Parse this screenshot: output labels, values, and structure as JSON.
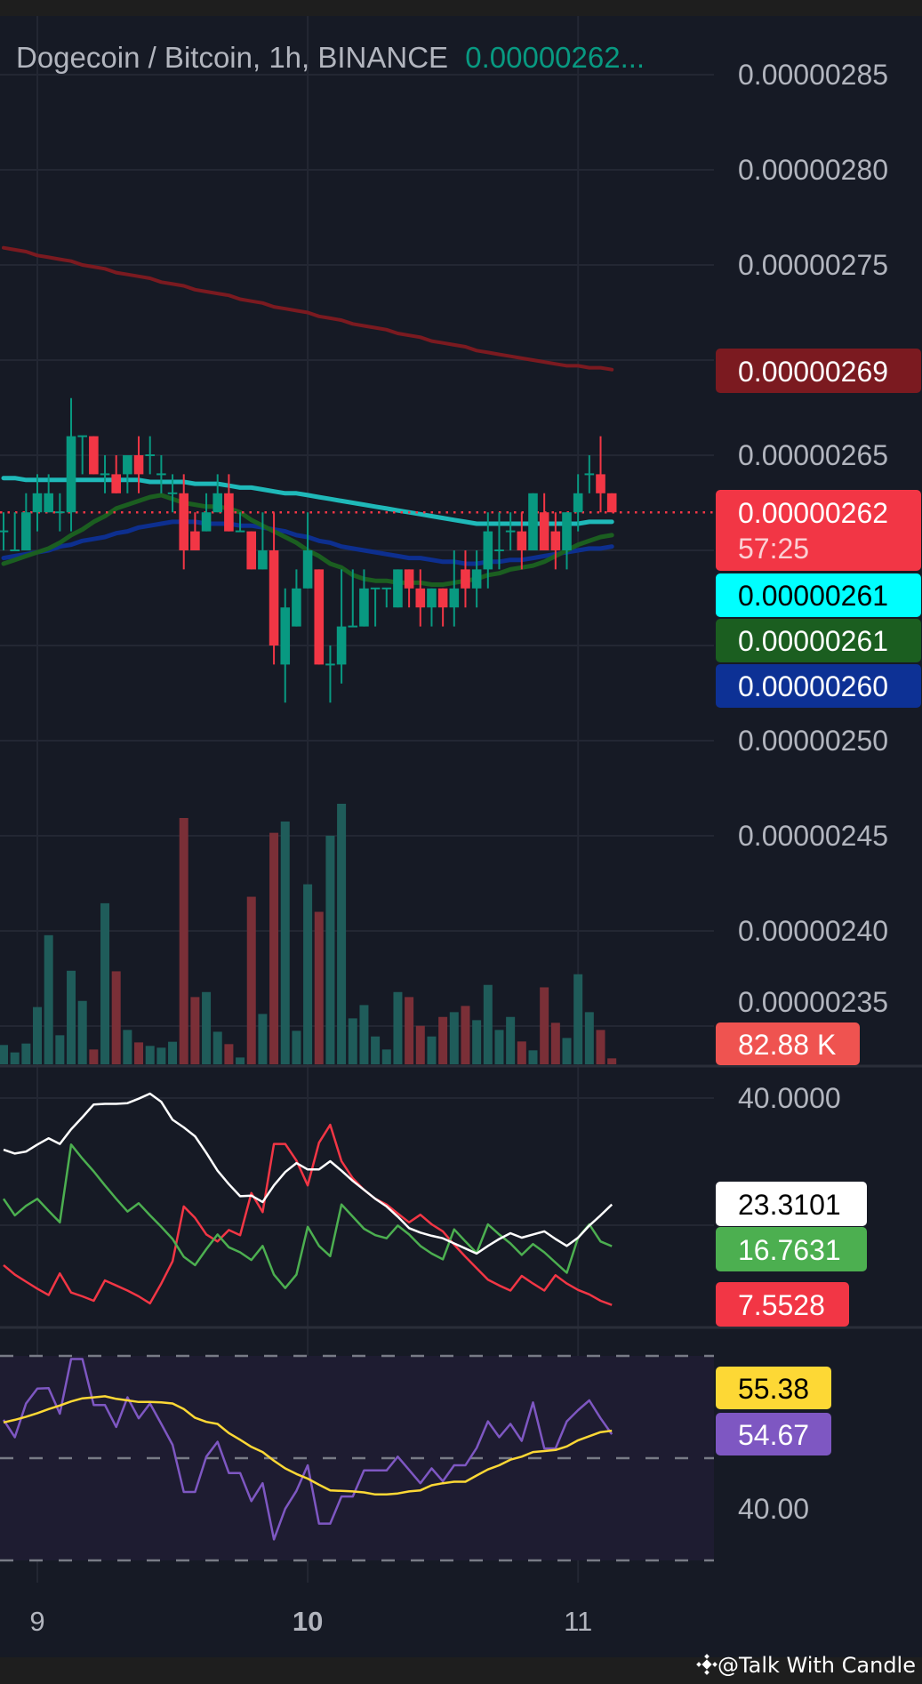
{
  "legend": {
    "symbol": "Dogecoin / Bitcoin, 1h, BINANCE",
    "last_value": "0.00000262..."
  },
  "colors": {
    "background": "#161a25",
    "grid": "#232733",
    "axis_text": "#b2b5be",
    "up": "#089981",
    "down": "#f23645",
    "volume_up": "#1f5c5a",
    "volume_down": "#7a2f37",
    "ma_red": "#7b1a20",
    "ma_cyan": "#1fb9b9",
    "ma_green": "#1b5e20",
    "ma_blue": "#0d2f8f",
    "adx": "#ffffff",
    "plus_di": "#4caf50",
    "minus_di": "#f23645",
    "rsi": "#7e57c2",
    "rsi_ma": "#fdd835",
    "rsi_band": "#1e1c31"
  },
  "price_axis": {
    "ticks": [
      "0.00000285",
      "0.00000280",
      "0.00000275",
      "0.00000270",
      "0.00000265",
      "0.00000260",
      "0.00000255",
      "0.00000250",
      "0.00000245",
      "0.00000240",
      "0.00000235"
    ],
    "tick_values": [
      2.85e-06,
      2.8e-06,
      2.75e-06,
      2.7e-06,
      2.65e-06,
      2.6e-06,
      2.55e-06,
      2.5e-06,
      2.45e-06,
      2.4e-06,
      2.35e-06
    ],
    "visible_tick_labels": [
      "0.00000285",
      "0.00000280",
      "0.00000275",
      "",
      "0.00000265",
      "",
      "",
      "0.00000250",
      "0.00000245",
      "0.00000240",
      "0.00000235"
    ]
  },
  "price_labels": {
    "ma_red": {
      "text": "0.00000269",
      "bg": "#7b1a20",
      "fg": "#ffffff"
    },
    "last": {
      "text": "0.00000262",
      "countdown": "57:25",
      "bg": "#f23645",
      "fg": "#ffffff"
    },
    "ma_cyan": {
      "text": "0.00000261",
      "bg": "#00ffff",
      "fg": "#000000"
    },
    "ma_green": {
      "text": "0.00000261",
      "bg": "#1b5e20",
      "fg": "#ffffff"
    },
    "ma_blue": {
      "text": "0.00000260",
      "bg": "#0d3195",
      "fg": "#ffffff"
    },
    "volume": {
      "text": "82.88 K",
      "bg": "#ef5350",
      "fg": "#ffffff"
    }
  },
  "last_price": 2.62e-06,
  "time_axis": {
    "labels": [
      {
        "text": "9",
        "bold": false,
        "candle": 3
      },
      {
        "text": "10",
        "bold": true,
        "candle": 27
      },
      {
        "text": "11",
        "bold": false,
        "candle": 51
      }
    ]
  },
  "candles": [
    [
      2.61e-06,
      2.62e-06,
      2.6e-06,
      2.61e-06
    ],
    [
      2.6e-06,
      2.62e-06,
      2.6e-06,
      2.6e-06
    ],
    [
      2.6e-06,
      2.63e-06,
      2.6e-06,
      2.62e-06
    ],
    [
      2.62e-06,
      2.64e-06,
      2.61e-06,
      2.63e-06
    ],
    [
      2.62e-06,
      2.64e-06,
      2.62e-06,
      2.63e-06
    ],
    [
      2.62e-06,
      2.63e-06,
      2.61e-06,
      2.62e-06
    ],
    [
      2.62e-06,
      2.68e-06,
      2.61e-06,
      2.66e-06
    ],
    [
      2.66e-06,
      2.66e-06,
      2.64e-06,
      2.66e-06
    ],
    [
      2.66e-06,
      2.66e-06,
      2.64e-06,
      2.64e-06
    ],
    [
      2.64e-06,
      2.65e-06,
      2.63e-06,
      2.64e-06
    ],
    [
      2.64e-06,
      2.65e-06,
      2.63e-06,
      2.63e-06
    ],
    [
      2.64e-06,
      2.65e-06,
      2.63e-06,
      2.65e-06
    ],
    [
      2.65e-06,
      2.66e-06,
      2.63e-06,
      2.64e-06
    ],
    [
      2.65e-06,
      2.66e-06,
      2.64e-06,
      2.65e-06
    ],
    [
      2.64e-06,
      2.65e-06,
      2.63e-06,
      2.64e-06
    ],
    [
      2.63e-06,
      2.64e-06,
      2.62e-06,
      2.63e-06
    ],
    [
      2.63e-06,
      2.64e-06,
      2.59e-06,
      2.6e-06
    ],
    [
      2.61e-06,
      2.62e-06,
      2.6e-06,
      2.6e-06
    ],
    [
      2.61e-06,
      2.63e-06,
      2.61e-06,
      2.62e-06
    ],
    [
      2.62e-06,
      2.64e-06,
      2.62e-06,
      2.63e-06
    ],
    [
      2.63e-06,
      2.64e-06,
      2.61e-06,
      2.61e-06
    ],
    [
      2.61e-06,
      2.62e-06,
      2.61e-06,
      2.61e-06
    ],
    [
      2.61e-06,
      2.61e-06,
      2.59e-06,
      2.59e-06
    ],
    [
      2.59e-06,
      2.62e-06,
      2.59e-06,
      2.6e-06
    ],
    [
      2.6e-06,
      2.62e-06,
      2.54e-06,
      2.55e-06
    ],
    [
      2.54e-06,
      2.58e-06,
      2.52e-06,
      2.57e-06
    ],
    [
      2.56e-06,
      2.59e-06,
      2.56e-06,
      2.58e-06
    ],
    [
      2.58e-06,
      2.62e-06,
      2.58e-06,
      2.6e-06
    ],
    [
      2.59e-06,
      2.59e-06,
      2.54e-06,
      2.54e-06
    ],
    [
      2.54e-06,
      2.55e-06,
      2.52e-06,
      2.54e-06
    ],
    [
      2.54e-06,
      2.59e-06,
      2.53e-06,
      2.56e-06
    ],
    [
      2.56e-06,
      2.59e-06,
      2.56e-06,
      2.56e-06
    ],
    [
      2.56e-06,
      2.59e-06,
      2.56e-06,
      2.58e-06
    ],
    [
      2.58e-06,
      2.58e-06,
      2.56e-06,
      2.58e-06
    ],
    [
      2.58e-06,
      2.58e-06,
      2.57e-06,
      2.58e-06
    ],
    [
      2.57e-06,
      2.59e-06,
      2.57e-06,
      2.59e-06
    ],
    [
      2.59e-06,
      2.59e-06,
      2.57e-06,
      2.58e-06
    ],
    [
      2.58e-06,
      2.59e-06,
      2.56e-06,
      2.57e-06
    ],
    [
      2.57e-06,
      2.58e-06,
      2.56e-06,
      2.58e-06
    ],
    [
      2.58e-06,
      2.58e-06,
      2.56e-06,
      2.57e-06
    ],
    [
      2.57e-06,
      2.6e-06,
      2.56e-06,
      2.58e-06
    ],
    [
      2.59e-06,
      2.6e-06,
      2.57e-06,
      2.58e-06
    ],
    [
      2.58e-06,
      2.6e-06,
      2.57e-06,
      2.59e-06
    ],
    [
      2.59e-06,
      2.62e-06,
      2.58e-06,
      2.61e-06
    ],
    [
      2.6e-06,
      2.62e-06,
      2.59e-06,
      2.6e-06
    ],
    [
      2.61e-06,
      2.62e-06,
      2.6e-06,
      2.61e-06
    ],
    [
      2.61e-06,
      2.62e-06,
      2.59e-06,
      2.6e-06
    ],
    [
      2.6e-06,
      2.63e-06,
      2.6e-06,
      2.63e-06
    ],
    [
      2.62e-06,
      2.63e-06,
      2.6e-06,
      2.6e-06
    ],
    [
      2.61e-06,
      2.62e-06,
      2.59e-06,
      2.6e-06
    ],
    [
      2.6e-06,
      2.62e-06,
      2.59e-06,
      2.62e-06
    ],
    [
      2.62e-06,
      2.64e-06,
      2.61e-06,
      2.63e-06
    ],
    [
      2.64e-06,
      2.65e-06,
      2.63e-06,
      2.64e-06
    ],
    [
      2.64e-06,
      2.66e-06,
      2.62e-06,
      2.63e-06
    ],
    [
      2.63e-06,
      2.63e-06,
      2.62e-06,
      2.62e-06
    ]
  ],
  "volume": [
    270000,
    166000,
    290000,
    800000,
    1805000,
    406000,
    1308000,
    886000,
    207000,
    2252000,
    1300000,
    480000,
    306000,
    257000,
    232000,
    315000,
    3444000,
    940000,
    1010000,
    455000,
    282000,
    95000,
    2343000,
    704000,
    3237000,
    3395000,
    468000,
    2517000,
    2132000,
    3196000,
    3643000,
    642000,
    828000,
    389000,
    207000,
    1010000,
    940000,
    538000,
    389000,
    662000,
    729000,
    816000,
    617000,
    1110000,
    480000,
    662000,
    319000,
    195000,
    1076000,
    580000,
    368000,
    1259000,
    729000,
    480000,
    82880
  ],
  "moving_averages": {
    "red": [
      2.759e-06,
      2.758e-06,
      2.757e-06,
      2.755e-06,
      2.754e-06,
      2.753e-06,
      2.752e-06,
      2.75e-06,
      2.749e-06,
      2.748e-06,
      2.746e-06,
      2.745e-06,
      2.744e-06,
      2.743e-06,
      2.741e-06,
      2.74e-06,
      2.739e-06,
      2.737e-06,
      2.736e-06,
      2.735e-06,
      2.734e-06,
      2.732e-06,
      2.731e-06,
      2.73e-06,
      2.728e-06,
      2.727e-06,
      2.726e-06,
      2.725e-06,
      2.723e-06,
      2.722e-06,
      2.721e-06,
      2.719e-06,
      2.718e-06,
      2.717e-06,
      2.716e-06,
      2.714e-06,
      2.713e-06,
      2.712e-06,
      2.71e-06,
      2.709e-06,
      2.708e-06,
      2.707e-06,
      2.705e-06,
      2.704e-06,
      2.703e-06,
      2.702e-06,
      2.701e-06,
      2.7e-06,
      2.699e-06,
      2.698e-06,
      2.697e-06,
      2.697e-06,
      2.696e-06,
      2.696e-06,
      2.695e-06
    ],
    "cyan": [
      2.638e-06,
      2.638e-06,
      2.637e-06,
      2.637e-06,
      2.637e-06,
      2.637e-06,
      2.637e-06,
      2.637e-06,
      2.637e-06,
      2.637e-06,
      2.637e-06,
      2.637e-06,
      2.637e-06,
      2.636e-06,
      2.636e-06,
      2.636e-06,
      2.636e-06,
      2.635e-06,
      2.635e-06,
      2.635e-06,
      2.634e-06,
      2.633e-06,
      2.633e-06,
      2.632e-06,
      2.631e-06,
      2.63e-06,
      2.63e-06,
      2.629e-06,
      2.628e-06,
      2.627e-06,
      2.626e-06,
      2.625e-06,
      2.624e-06,
      2.623e-06,
      2.622e-06,
      2.621e-06,
      2.62e-06,
      2.619e-06,
      2.618e-06,
      2.617e-06,
      2.616e-06,
      2.615e-06,
      2.614e-06,
      2.614e-06,
      2.614e-06,
      2.614e-06,
      2.614e-06,
      2.614e-06,
      2.614e-06,
      2.614e-06,
      2.614e-06,
      2.614e-06,
      2.615e-06,
      2.615e-06,
      2.615e-06
    ],
    "green": [
      2.593e-06,
      2.595e-06,
      2.597e-06,
      2.599e-06,
      2.601e-06,
      2.604e-06,
      2.608e-06,
      2.611e-06,
      2.615e-06,
      2.618e-06,
      2.622e-06,
      2.624e-06,
      2.626e-06,
      2.628e-06,
      2.629e-06,
      2.627e-06,
      2.625e-06,
      2.624e-06,
      2.623e-06,
      2.623e-06,
      2.622e-06,
      2.62e-06,
      2.616e-06,
      2.613e-06,
      2.61e-06,
      2.607e-06,
      2.604e-06,
      2.6e-06,
      2.597e-06,
      2.593e-06,
      2.591e-06,
      2.587e-06,
      2.585e-06,
      2.584e-06,
      2.584e-06,
      2.583e-06,
      2.583e-06,
      2.583e-06,
      2.582e-06,
      2.582e-06,
      2.583e-06,
      2.584e-06,
      2.585e-06,
      2.587e-06,
      2.588e-06,
      2.59e-06,
      2.591e-06,
      2.592e-06,
      2.594e-06,
      2.597e-06,
      2.6e-06,
      2.603e-06,
      2.605e-06,
      2.607e-06,
      2.608e-06
    ],
    "blue": [
      2.596e-06,
      2.597e-06,
      2.598e-06,
      2.599e-06,
      2.6e-06,
      2.602e-06,
      2.603e-06,
      2.605e-06,
      2.606e-06,
      2.607e-06,
      2.609e-06,
      2.61e-06,
      2.612e-06,
      2.613e-06,
      2.614e-06,
      2.615e-06,
      2.615e-06,
      2.615e-06,
      2.614e-06,
      2.614e-06,
      2.614e-06,
      2.613e-06,
      2.613e-06,
      2.612e-06,
      2.611e-06,
      2.61e-06,
      2.608e-06,
      2.607e-06,
      2.605e-06,
      2.604e-06,
      2.602e-06,
      2.601e-06,
      2.6e-06,
      2.599e-06,
      2.598e-06,
      2.597e-06,
      2.596e-06,
      2.596e-06,
      2.595e-06,
      2.594e-06,
      2.594e-06,
      2.593e-06,
      2.593e-06,
      2.594e-06,
      2.594e-06,
      2.595e-06,
      2.595e-06,
      2.596e-06,
      2.597e-06,
      2.598e-06,
      2.599e-06,
      2.6e-06,
      2.601e-06,
      2.601e-06,
      2.602e-06
    ]
  },
  "dmi": {
    "axis_label": "40.0000",
    "labels": {
      "adx": "23.3101",
      "plus_di": "16.7631",
      "minus_di": "7.5528"
    },
    "adx": [
      31.9,
      31.3,
      31.6,
      32.7,
      33.7,
      32.8,
      35.1,
      37.0,
      39.0,
      39.1,
      39.1,
      39.2,
      39.9,
      40.7,
      39.4,
      36.6,
      35.4,
      34.0,
      31.4,
      28.6,
      26.5,
      24.6,
      24.7,
      23.7,
      26.3,
      28.4,
      29.8,
      28.8,
      28.8,
      30.1,
      28.6,
      27.0,
      25.6,
      24.2,
      23.0,
      21.4,
      19.6,
      18.9,
      18.4,
      18.0,
      17.2,
      16.4,
      15.6,
      16.8,
      17.9,
      18.8,
      18.1,
      18.6,
      19.1,
      17.9,
      16.8,
      18.1,
      20.0,
      21.6,
      23.31
    ],
    "plus_di": [
      24.2,
      21.6,
      23.1,
      24.2,
      22.3,
      20.5,
      32.7,
      30.5,
      28.5,
      26.3,
      24.2,
      22.2,
      23.5,
      21.6,
      19.8,
      17.9,
      15.1,
      13.8,
      16.3,
      18.6,
      16.6,
      15.8,
      14.6,
      16.8,
      12.3,
      10.2,
      12.3,
      19.8,
      16.8,
      15.2,
      23.3,
      21.4,
      19.5,
      18.5,
      18.0,
      20.0,
      18.6,
      16.8,
      15.6,
      14.7,
      19.4,
      17.5,
      15.7,
      20.2,
      18.6,
      17.2,
      15.4,
      17.1,
      15.8,
      14.2,
      12.6,
      18.1,
      20.2,
      17.5,
      16.76
    ],
    "minus_di": [
      13.8,
      12.3,
      11.2,
      10.1,
      9.1,
      12.5,
      9.5,
      8.9,
      8.2,
      11.4,
      10.6,
      9.8,
      8.9,
      7.8,
      10.9,
      14.4,
      23.0,
      21.2,
      18.6,
      17.5,
      19.3,
      18.5,
      25.1,
      22.1,
      32.8,
      32.8,
      30.2,
      26.3,
      33.0,
      35.8,
      30.1,
      27.4,
      25.6,
      24.2,
      23.3,
      21.9,
      20.5,
      21.7,
      20.2,
      19.1,
      17.0,
      15.1,
      13.3,
      11.5,
      10.6,
      9.8,
      12.1,
      10.9,
      9.8,
      12.2,
      10.9,
      9.9,
      9.2,
      8.2,
      7.55
    ]
  },
  "rsi": {
    "axis_label": "40.00",
    "labels": {
      "rsi_ma": "55.38",
      "rsi": "54.67"
    },
    "band": [
      30,
      70
    ],
    "mid": 50,
    "rsi": [
      57.5,
      54.1,
      60.7,
      63.6,
      63.7,
      58.7,
      69.4,
      69.4,
      60.4,
      60.4,
      56.1,
      61.9,
      57.8,
      60.7,
      56.7,
      52.6,
      43.4,
      43.4,
      50.3,
      53.2,
      47.1,
      47.1,
      41.6,
      45.1,
      34.1,
      40.1,
      43.6,
      48.6,
      37.2,
      37.2,
      42.5,
      42.5,
      47.6,
      47.6,
      47.6,
      50.3,
      47.7,
      45.1,
      48.0,
      45.5,
      48.6,
      48.6,
      52.0,
      57.2,
      54.1,
      56.7,
      53.4,
      60.9,
      51.9,
      51.9,
      57.2,
      59.4,
      61.3,
      57.8,
      54.67
    ],
    "rsi_ma": [
      57.0,
      57.5,
      58.1,
      58.8,
      59.6,
      60.3,
      61.1,
      61.7,
      61.9,
      62.1,
      61.6,
      61.3,
      61.0,
      61.0,
      60.9,
      60.7,
      59.6,
      57.9,
      57.1,
      56.7,
      54.9,
      53.6,
      52.2,
      51.2,
      49.5,
      48.0,
      46.9,
      46.0,
      44.8,
      43.7,
      43.6,
      43.5,
      43.3,
      42.9,
      42.9,
      43.1,
      43.5,
      43.7,
      44.7,
      45.1,
      45.4,
      45.4,
      46.6,
      47.8,
      48.6,
      49.7,
      50.3,
      51.2,
      51.4,
      51.6,
      52.3,
      53.5,
      54.3,
      55.1,
      55.38
    ]
  },
  "watermark": {
    "text": "@Talk With Candle",
    "icon": "binance-logo-icon"
  }
}
